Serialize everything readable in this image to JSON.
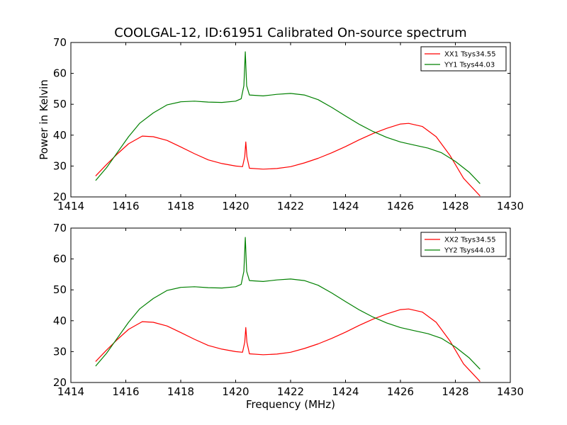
{
  "figure": {
    "title": "COOLGAL-12, ID:61951 Calibrated On-source spectrum",
    "ylabel": "Power in Kelvin",
    "xlabel": "Frequency (MHz)"
  },
  "chart_data": [
    {
      "type": "line",
      "title": "COOLGAL-12, ID:61951 Calibrated On-source spectrum",
      "xlabel": "",
      "ylabel": "Power in Kelvin",
      "xlim": [
        1414,
        1430
      ],
      "ylim": [
        20,
        70
      ],
      "xticks": [
        1414,
        1416,
        1418,
        1420,
        1422,
        1424,
        1426,
        1428,
        1430
      ],
      "yticks": [
        20,
        30,
        40,
        50,
        60,
        70
      ],
      "grid": false,
      "legend": "top-right",
      "series": [
        {
          "name": "XX1 Tsys34.55",
          "color": "#ff0000",
          "points": [
            [
              1414.9,
              26.8
            ],
            [
              1415.3,
              30.5
            ],
            [
              1415.7,
              34.0
            ],
            [
              1416.1,
              37.2
            ],
            [
              1416.6,
              39.7
            ],
            [
              1417.0,
              39.5
            ],
            [
              1417.5,
              38.3
            ],
            [
              1418.0,
              36.2
            ],
            [
              1418.5,
              34.0
            ],
            [
              1419.0,
              32.0
            ],
            [
              1419.5,
              30.8
            ],
            [
              1420.0,
              30.0
            ],
            [
              1420.25,
              29.8
            ],
            [
              1420.33,
              33.0
            ],
            [
              1420.37,
              37.8
            ],
            [
              1420.41,
              33.0
            ],
            [
              1420.5,
              29.3
            ],
            [
              1421.0,
              29.0
            ],
            [
              1421.5,
              29.2
            ],
            [
              1422.0,
              29.8
            ],
            [
              1422.5,
              31.0
            ],
            [
              1423.0,
              32.5
            ],
            [
              1423.5,
              34.3
            ],
            [
              1424.0,
              36.3
            ],
            [
              1424.5,
              38.5
            ],
            [
              1425.0,
              40.5
            ],
            [
              1425.5,
              42.2
            ],
            [
              1426.0,
              43.6
            ],
            [
              1426.3,
              43.8
            ],
            [
              1426.8,
              42.8
            ],
            [
              1427.3,
              39.5
            ],
            [
              1427.8,
              33.5
            ],
            [
              1428.3,
              26.0
            ],
            [
              1428.9,
              20.3
            ]
          ]
        },
        {
          "name": "YY1 Tsys44.03",
          "color": "#008000",
          "points": [
            [
              1414.9,
              25.3
            ],
            [
              1415.3,
              29.5
            ],
            [
              1415.7,
              34.5
            ],
            [
              1416.1,
              39.5
            ],
            [
              1416.5,
              43.8
            ],
            [
              1417.0,
              47.2
            ],
            [
              1417.5,
              49.8
            ],
            [
              1418.0,
              50.8
            ],
            [
              1418.5,
              51.0
            ],
            [
              1419.0,
              50.7
            ],
            [
              1419.5,
              50.6
            ],
            [
              1420.0,
              51.0
            ],
            [
              1420.2,
              51.8
            ],
            [
              1420.3,
              56.0
            ],
            [
              1420.35,
              67.0
            ],
            [
              1420.4,
              56.0
            ],
            [
              1420.5,
              53.0
            ],
            [
              1421.0,
              52.7
            ],
            [
              1421.5,
              53.2
            ],
            [
              1422.0,
              53.5
            ],
            [
              1422.5,
              53.0
            ],
            [
              1423.0,
              51.5
            ],
            [
              1423.5,
              49.0
            ],
            [
              1424.0,
              46.2
            ],
            [
              1424.5,
              43.5
            ],
            [
              1425.0,
              41.2
            ],
            [
              1425.5,
              39.3
            ],
            [
              1426.0,
              37.8
            ],
            [
              1426.5,
              36.8
            ],
            [
              1427.0,
              35.8
            ],
            [
              1427.5,
              34.3
            ],
            [
              1428.0,
              31.5
            ],
            [
              1428.5,
              28.0
            ],
            [
              1428.9,
              24.3
            ]
          ]
        }
      ]
    },
    {
      "type": "line",
      "title": "",
      "xlabel": "Frequency (MHz)",
      "ylabel": "",
      "xlim": [
        1414,
        1430
      ],
      "ylim": [
        20,
        70
      ],
      "xticks": [
        1414,
        1416,
        1418,
        1420,
        1422,
        1424,
        1426,
        1428,
        1430
      ],
      "yticks": [
        20,
        30,
        40,
        50,
        60,
        70
      ],
      "grid": false,
      "legend": "top-right",
      "series": [
        {
          "name": "XX2 Tsys34.55",
          "color": "#ff0000",
          "points": [
            [
              1414.9,
              26.8
            ],
            [
              1415.3,
              30.5
            ],
            [
              1415.7,
              34.0
            ],
            [
              1416.1,
              37.2
            ],
            [
              1416.6,
              39.7
            ],
            [
              1417.0,
              39.5
            ],
            [
              1417.5,
              38.3
            ],
            [
              1418.0,
              36.2
            ],
            [
              1418.5,
              34.0
            ],
            [
              1419.0,
              32.0
            ],
            [
              1419.5,
              30.8
            ],
            [
              1420.0,
              30.0
            ],
            [
              1420.25,
              29.8
            ],
            [
              1420.33,
              33.0
            ],
            [
              1420.37,
              37.8
            ],
            [
              1420.41,
              33.0
            ],
            [
              1420.5,
              29.3
            ],
            [
              1421.0,
              29.0
            ],
            [
              1421.5,
              29.2
            ],
            [
              1422.0,
              29.8
            ],
            [
              1422.5,
              31.0
            ],
            [
              1423.0,
              32.5
            ],
            [
              1423.5,
              34.3
            ],
            [
              1424.0,
              36.3
            ],
            [
              1424.5,
              38.5
            ],
            [
              1425.0,
              40.5
            ],
            [
              1425.5,
              42.2
            ],
            [
              1426.0,
              43.6
            ],
            [
              1426.3,
              43.8
            ],
            [
              1426.8,
              42.8
            ],
            [
              1427.3,
              39.5
            ],
            [
              1427.8,
              33.5
            ],
            [
              1428.3,
              26.0
            ],
            [
              1428.9,
              20.3
            ]
          ]
        },
        {
          "name": "YY2 Tsys44.03",
          "color": "#008000",
          "points": [
            [
              1414.9,
              25.3
            ],
            [
              1415.3,
              29.5
            ],
            [
              1415.7,
              34.5
            ],
            [
              1416.1,
              39.5
            ],
            [
              1416.5,
              43.8
            ],
            [
              1417.0,
              47.2
            ],
            [
              1417.5,
              49.8
            ],
            [
              1418.0,
              50.8
            ],
            [
              1418.5,
              51.0
            ],
            [
              1419.0,
              50.7
            ],
            [
              1419.5,
              50.6
            ],
            [
              1420.0,
              51.0
            ],
            [
              1420.2,
              51.8
            ],
            [
              1420.3,
              56.0
            ],
            [
              1420.35,
              67.0
            ],
            [
              1420.4,
              56.0
            ],
            [
              1420.5,
              53.0
            ],
            [
              1421.0,
              52.7
            ],
            [
              1421.5,
              53.2
            ],
            [
              1422.0,
              53.5
            ],
            [
              1422.5,
              53.0
            ],
            [
              1423.0,
              51.5
            ],
            [
              1423.5,
              49.0
            ],
            [
              1424.0,
              46.2
            ],
            [
              1424.5,
              43.5
            ],
            [
              1425.0,
              41.2
            ],
            [
              1425.5,
              39.3
            ],
            [
              1426.0,
              37.8
            ],
            [
              1426.5,
              36.8
            ],
            [
              1427.0,
              35.8
            ],
            [
              1427.5,
              34.3
            ],
            [
              1428.0,
              31.5
            ],
            [
              1428.5,
              28.0
            ],
            [
              1428.9,
              24.3
            ]
          ]
        }
      ]
    }
  ]
}
